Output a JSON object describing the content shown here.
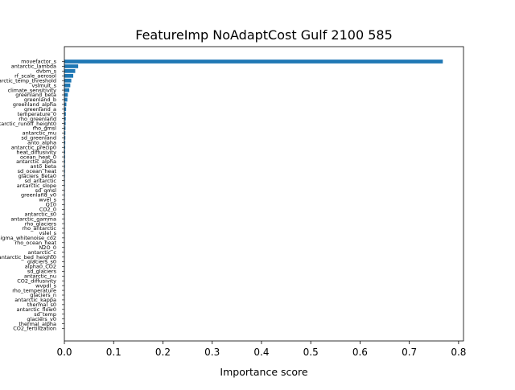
{
  "chart_data": {
    "type": "bar",
    "orientation": "horizontal",
    "title": "FeatureImp NoAdaptCost Gulf 2100 585",
    "xlabel": "Importance score",
    "ylabel": "",
    "xlim": [
      0,
      0.81
    ],
    "x_ticks": [
      0.0,
      0.1,
      0.2,
      0.3,
      0.4,
      0.5,
      0.6,
      0.7,
      0.8
    ],
    "x_tick_labels": [
      "0.0",
      "0.1",
      "0.2",
      "0.3",
      "0.4",
      "0.5",
      "0.6",
      "0.7",
      "0.8"
    ],
    "grid": false,
    "bar_color": "#1f77b4",
    "categories": [
      "movefactor_s",
      "antarctic_lambda",
      "dvbm_s",
      "rf_scale_aerosol",
      "antarctic_temp_threshold",
      "vslmult_s",
      "climate_sensitivity",
      "greenland_beta",
      "greenland_b",
      "greenland_alpha",
      "greenland_a",
      "temperature_0",
      "rho_greenland",
      "antarctic_runoff_height0",
      "rho_gmsl",
      "antarctic_mu",
      "sd_greenland",
      "anto_alpha",
      "antarctic_precip0",
      "heat_diffusivity",
      "ocean_heat_0",
      "antarctic_alpha",
      "anto_beta",
      "sd_ocean_heat",
      "glaciers_beta0",
      "sd_antarctic",
      "antarctic_slope",
      "sd_gmsl",
      "greenland_v0",
      "wvel_s",
      "Q10",
      "CO2_0",
      "antarctic_s0",
      "antarctic_gamma",
      "rho_glaciers",
      "rho_antarctic",
      "vslel_s",
      "sigma_whitenoise_co2",
      "rho_ocean_heat",
      "N2O_0",
      "antarctic_c",
      "antarctic_bed_height0",
      "glaciers_s0",
      "alpha0_CO2",
      "sd_glaciers",
      "antarctic_nu",
      "CO2_diffusivity",
      "wvpdl_s",
      "rho_temperature",
      "glaciers_n",
      "antarctic_kappa",
      "thermal_s0",
      "antarctic_flow0",
      "sd_temp",
      "glaciers_v0",
      "thermal_alpha",
      "CO2_fertilization"
    ],
    "values": [
      0.768,
      0.028,
      0.022,
      0.018,
      0.014,
      0.012,
      0.01,
      0.007,
      0.006,
      0.004,
      0.0035,
      0.003,
      0.0028,
      0.0025,
      0.0022,
      0.002,
      0.0019,
      0.0018,
      0.0017,
      0.0016,
      0.0015,
      0.0014,
      0.0013,
      0.0012,
      0.0011,
      0.001,
      0.001,
      0.0009,
      0.0009,
      0.0008,
      0.0008,
      0.0007,
      0.0007,
      0.0006,
      0.0006,
      0.0005,
      0.0005,
      0.0005,
      0.0004,
      0.0004,
      0.0004,
      0.0003,
      0.0003,
      0.0003,
      0.0003,
      0.0002,
      0.0002,
      0.0002,
      0.0002,
      0.0001,
      0.0001,
      0.0001,
      0.0001,
      0.0001,
      0.0001,
      0.0001,
      0.0001
    ]
  }
}
